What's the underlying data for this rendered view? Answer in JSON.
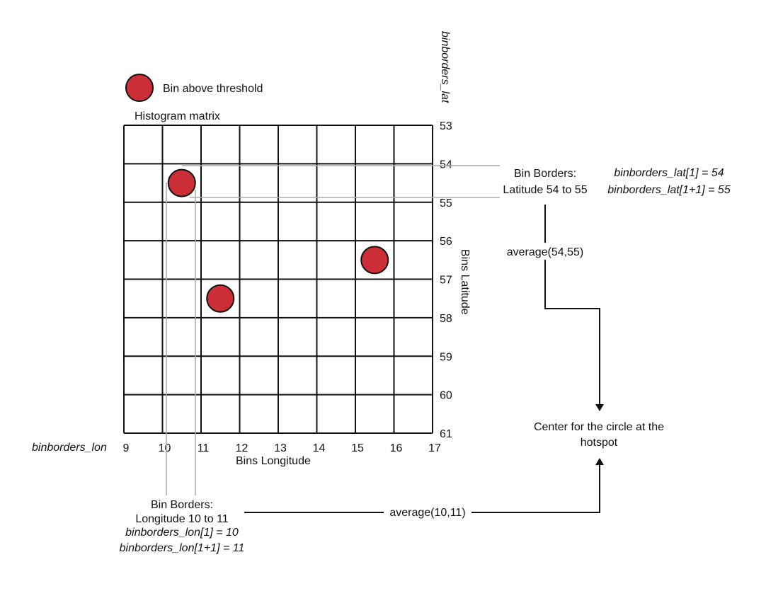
{
  "legend": {
    "label": "Bin above threshold",
    "color": "#cc2e38"
  },
  "matrix": {
    "title": "Histogram matrix",
    "lat_name": "binborders_lat",
    "lon_name": "binborders_lon",
    "lat_axis_label": "Bins Latitude",
    "lon_axis_label": "Bins Longitude",
    "lat_ticks": [
      "53",
      "54",
      "55",
      "56",
      "57",
      "58",
      "59",
      "60",
      "61"
    ],
    "lon_ticks": [
      "9",
      "10",
      "11",
      "12",
      "13",
      "14",
      "15",
      "16",
      "17"
    ]
  },
  "lat_note": {
    "title": "Bin Borders:",
    "range": "Latitude 54 to 55",
    "formula1": "binborders_lat[1] = 54",
    "formula2": "binborders_lat[1+1] = 55"
  },
  "lon_note": {
    "title": "Bin Borders:",
    "range": "Longitude 10 to 11",
    "formula1": "binborders_lon[1] = 10",
    "formula2": "binborders_lon[1+1] = 11"
  },
  "avg_lat": "average(54,55)",
  "avg_lon": "average(10,11)",
  "center": {
    "line1": "Center for the circle at the",
    "line2": "hotspot"
  },
  "highlighted_bins": [
    {
      "lon": 10.5,
      "lat": 54.5
    },
    {
      "lon": 15.5,
      "lat": 56.5
    },
    {
      "lon": 11.5,
      "lat": 57.5
    }
  ]
}
